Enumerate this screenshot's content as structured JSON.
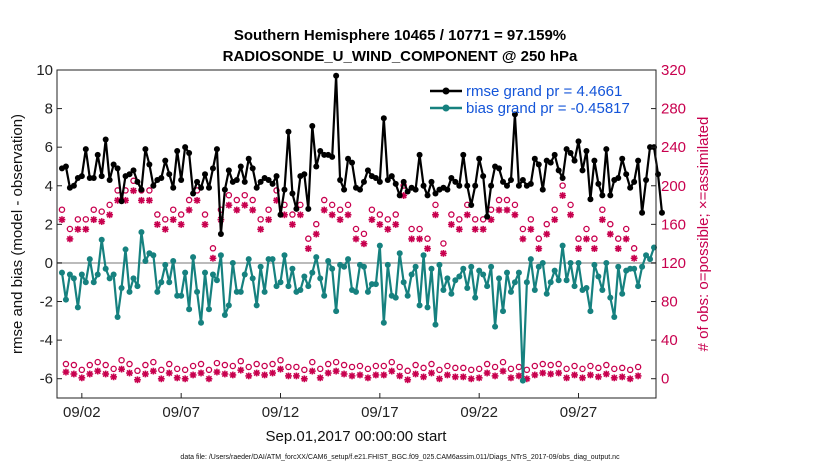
{
  "chart_data": {
    "type": "line",
    "title_line1": "Southern Hemisphere 10465 / 10771 = 97.159%",
    "title_line2": "RADIOSONDE_U_WIND_COMPONENT @ 250 hPa",
    "ylabel_left": "rmse and bias (model - observation)",
    "ylabel_right": "# of obs: o=possible; ×=assimilated",
    "xlabel": "Sep.01,2017 00:00:00 start",
    "footer": "data file: /Users/raeder/DAI/ATM_forcXX/CAM6_setup/f.e21.FHIST_BGC.f09_025.CAM6assim.011/Diags_NTrS_2017-09/obs_diag_output.nc",
    "xlim": [
      0.75,
      30.9
    ],
    "ylim_left": [
      -7,
      10
    ],
    "ylim_right": [
      -20,
      320
    ],
    "y_ticks_left": [
      "-6",
      "-4",
      "-2",
      "0",
      "2",
      "4",
      "6",
      "8",
      "10"
    ],
    "y_ticks_right": [
      "0",
      "40",
      "80",
      "120",
      "160",
      "200",
      "240",
      "280",
      "320"
    ],
    "x_ticks": [
      "09/02",
      "09/07",
      "09/12",
      "09/17",
      "09/22",
      "09/27"
    ],
    "legend": [
      {
        "label": "rmse grand pr = 4.4661",
        "color": "#000000"
      },
      {
        "label": "bias grand pr = -0.45817",
        "color": "#16817f"
      }
    ],
    "colors": {
      "rmse": "#000000",
      "bias": "#16817f",
      "obs": "#c8004e",
      "zero": "#bbbbbb"
    },
    "rmse": [
      4.9,
      5.0,
      3.9,
      4.0,
      4.4,
      4.5,
      5.9,
      4.4,
      4.4,
      5.6,
      4.5,
      6.4,
      4.3,
      5.1,
      4.9,
      3.2,
      4.5,
      4.6,
      4.8,
      4.2,
      3.8,
      5.9,
      5.1,
      4.0,
      4.3,
      4.4,
      5.3,
      4.6,
      3.9,
      5.8,
      4.3,
      6.0,
      5.7,
      3.6,
      4.2,
      3.9,
      4.6,
      3.9,
      4.9,
      5.9,
      1.5,
      3.8,
      4.8,
      4.2,
      4.3,
      5.0,
      4.2,
      5.4,
      4.9,
      3.9,
      4.2,
      4.4,
      4.3,
      4.1,
      4.5,
      2.5,
      3.8,
      6.8,
      3.6,
      2.8,
      4.5,
      4.6,
      2.8,
      7.1,
      5.0,
      5.8,
      5.6,
      5.6,
      5.5,
      9.7,
      4.3,
      3.8,
      5.4,
      5.2,
      3.9,
      3.8,
      4.2,
      4.8,
      4.5,
      4.4,
      4.2,
      7.5,
      4.3,
      4.5,
      4.1,
      3.5,
      4.2,
      3.7,
      3.9,
      3.8,
      5.6,
      4.0,
      3.5,
      4.2,
      3.6,
      3.8,
      3.9,
      3.8,
      4.4,
      4.2,
      4.0,
      5.6,
      4.0,
      3.0,
      4.0,
      5.4,
      4.5,
      2.4,
      4.0,
      5.0,
      4.9,
      4.2,
      4.0,
      4.3,
      7.7,
      4.0,
      4.3,
      4.0,
      4.1,
      5.4,
      5.1,
      3.8,
      5.3,
      5.2,
      5.6,
      4.8,
      4.4,
      5.9,
      5.7,
      5.3,
      6.3,
      4.8,
      5.8,
      3.3,
      5.3,
      4.1,
      3.5,
      5.9,
      3.5,
      4.3,
      4.4,
      5.4,
      4.6,
      3.9,
      4.2,
      5.3,
      2.6,
      4.3,
      6.0,
      6.0,
      4.6,
      2.6
    ],
    "bias": [
      -0.5,
      -1.9,
      -0.6,
      -0.8,
      -2.3,
      -0.6,
      -1.0,
      0.2,
      -1.0,
      -0.6,
      1.2,
      -0.3,
      -0.8,
      -0.6,
      -2.8,
      -1.3,
      0.7,
      -1.5,
      -0.8,
      -1.2,
      1.6,
      0.1,
      0.5,
      0.4,
      -1.5,
      -1.0,
      -0.1,
      -1.0,
      0.1,
      -1.7,
      -1.7,
      -0.5,
      -2.4,
      0.3,
      -1.5,
      -3.1,
      -0.5,
      -2.4,
      -0.6,
      -0.9,
      0.4,
      -2.7,
      -2.2,
      0.0,
      -1.5,
      -1.5,
      -0.6,
      0.2,
      -0.8,
      -2.2,
      -0.2,
      -1.5,
      0.2,
      0.2,
      -1.2,
      -1.0,
      0.4,
      -1.2,
      -0.3,
      -1.5,
      -1.4,
      -0.7,
      -1.2,
      -0.5,
      0.3,
      -0.8,
      -1.7,
      0.1,
      -0.3,
      -2.5,
      -0.1,
      -0.2,
      0.2,
      -1.4,
      -1.5,
      -0.1,
      -0.2,
      -1.5,
      -1.1,
      -1.1,
      0.9,
      -3.1,
      -0.1,
      -1.7,
      -1.8,
      0.5,
      -1.0,
      -1.7,
      -0.6,
      -0.2,
      -2.2,
      0.4,
      -2.3,
      -0.3,
      -3.2,
      -0.1,
      -1.4,
      -0.8,
      -1.6,
      -0.9,
      -0.7,
      -0.3,
      -1.3,
      -0.2,
      -1.8,
      -0.4,
      -0.6,
      -1.2,
      -0.2,
      -3.3,
      -0.8,
      -2.5,
      -0.5,
      -1.5,
      -1.0,
      -0.5,
      -6.1,
      -1.0,
      0.2,
      -1.4,
      -0.2,
      0.0,
      -1.6,
      -1.0,
      -0.4,
      -0.9,
      0.9,
      -0.9,
      0.0,
      -1.2,
      0.0,
      -1.4,
      -1.3,
      -2.5,
      -0.1,
      -0.7,
      -1.4,
      0.0,
      -1.8,
      -2.8,
      -0.2,
      -1.6,
      -0.4,
      -0.3,
      -0.3,
      -1.2,
      -0.2,
      0.4,
      0.2,
      0.8
    ],
    "obs_possible": [
      170,
      10,
      150,
      9,
      160,
      4,
      160,
      9,
      170,
      12,
      168,
      9,
      175,
      5,
      190,
      14,
      190,
      10,
      200,
      3,
      190,
      9,
      190,
      12,
      165,
      4,
      160,
      10,
      170,
      5,
      165,
      4,
      180,
      8,
      190,
      10,
      165,
      4,
      130,
      11,
      170,
      9,
      185,
      8,
      180,
      13,
      185,
      7,
      180,
      10,
      160,
      8,
      170,
      10,
      190,
      14,
      175,
      7,
      165,
      7,
      175,
      4,
      140,
      12,
      155,
      5,
      180,
      10,
      175,
      12,
      170,
      9,
      175,
      7,
      150,
      8,
      145,
      5,
      170,
      8,
      165,
      8,
      160,
      12,
      165,
      7,
      195,
      3,
      150,
      9,
      150,
      6,
      140,
      10,
      175,
      4,
      135,
      8,
      165,
      6,
      160,
      6,
      175,
      4,
      160,
      5,
      160,
      10,
      170,
      7,
      180,
      12,
      180,
      5,
      175,
      7,
      150,
      4,
      160,
      8,
      140,
      10,
      155,
      9,
      170,
      10,
      195,
      5,
      175,
      8,
      140,
      5,
      150,
      8,
      140,
      6,
      170,
      9,
      155,
      5,
      140,
      6,
      150,
      4,
      130,
      7
    ],
    "obs_assimilated": [
      168,
      10,
      148,
      8,
      158,
      4,
      158,
      8,
      168,
      11,
      166,
      8,
      173,
      5,
      188,
      13,
      188,
      9,
      198,
      2,
      188,
      8,
      188,
      11,
      163,
      3,
      158,
      9,
      168,
      4,
      163,
      3,
      178,
      7,
      188,
      9,
      163,
      3,
      128,
      10,
      168,
      8,
      183,
      7,
      178,
      12,
      183,
      6,
      178,
      9,
      158,
      7,
      168,
      9,
      188,
      13,
      173,
      6,
      163,
      6,
      173,
      3,
      138,
      11,
      153,
      4,
      178,
      9,
      173,
      11,
      168,
      8,
      173,
      6,
      148,
      7,
      143,
      4,
      168,
      7,
      163,
      7,
      158,
      11,
      163,
      6,
      193,
      2,
      148,
      8,
      148,
      5,
      138,
      9,
      173,
      3,
      133,
      7,
      163,
      5,
      158,
      5,
      173,
      3,
      158,
      4,
      158,
      9,
      168,
      6,
      178,
      11,
      178,
      4,
      173,
      6,
      148,
      3,
      158,
      7,
      138,
      9,
      153,
      8,
      168,
      9,
      193,
      4,
      173,
      7,
      138,
      4,
      148,
      7,
      138,
      5,
      168,
      8,
      153,
      4,
      138,
      5,
      148,
      3,
      128,
      6
    ]
  }
}
